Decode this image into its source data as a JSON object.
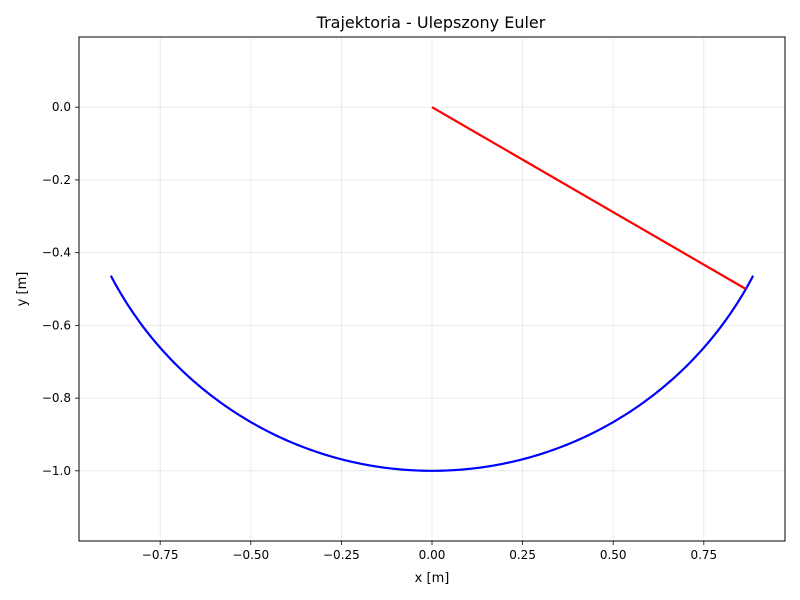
{
  "chart_data": {
    "type": "line",
    "title": "Trajektoria - Ulepszony Euler",
    "xlabel": "x [m]",
    "ylabel": "y [m]",
    "xlim": [
      -0.974,
      0.974
    ],
    "ylim": [
      -1.193,
      0.193
    ],
    "grid": true,
    "x_ticks": [
      -0.75,
      -0.5,
      -0.25,
      0.0,
      0.25,
      0.5,
      0.75
    ],
    "x_tick_labels": [
      "−0.75",
      "−0.50",
      "−0.25",
      "0.00",
      "0.25",
      "0.50",
      "0.75"
    ],
    "y_ticks": [
      0.0,
      -0.2,
      -0.4,
      -0.6,
      -0.8,
      -1.0
    ],
    "y_tick_labels": [
      "0.0",
      "−0.2",
      "−0.4",
      "−0.6",
      "−0.8",
      "−1.0"
    ],
    "series": [
      {
        "color": "#0000ff",
        "arc": {
          "radius": 1.0,
          "x_min": -0.885,
          "x_max": 0.885
        }
      },
      {
        "color": "#ff0000",
        "x": [
          0.0,
          0.866
        ],
        "y": [
          0.0,
          -0.5
        ]
      }
    ]
  }
}
